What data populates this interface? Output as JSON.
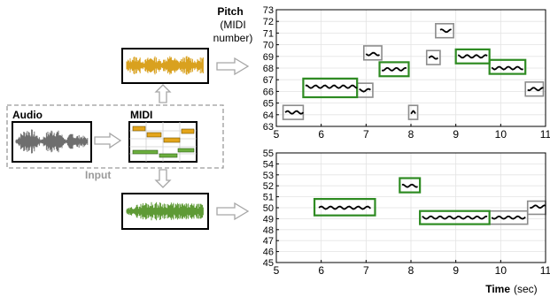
{
  "labels": {
    "audio": "Audio",
    "midi": "MIDI",
    "input": "Input",
    "pitch_title": "Pitch",
    "pitch_line2": "(MIDI",
    "pitch_line3": "number)",
    "time_title": "Time",
    "time_unit": "(sec)"
  },
  "colors": {
    "orange_wave": "#d9a11f",
    "green_wave": "#5e9a35",
    "gray_wave": "#6e6e6e",
    "green_box": "#2e8b22",
    "gray_box": "#8c8c8c",
    "dashed_border": "#9a9a9a",
    "arrow": "#a6a6a6"
  },
  "chart_data": [
    {
      "type": "line",
      "title": "",
      "xlabel": "",
      "ylabel": "Pitch (MIDI number)",
      "xlim": [
        5,
        11
      ],
      "ylim": [
        63,
        73
      ],
      "xticks": [
        "5",
        "6",
        "7",
        "8",
        "9",
        "10",
        "11"
      ],
      "yticks": [
        "63",
        "64",
        "65",
        "66",
        "67",
        "68",
        "69",
        "70",
        "71",
        "72",
        "73"
      ],
      "grid": true,
      "gray_notes": [
        {
          "x0": 5.15,
          "x1": 5.6,
          "y0": 63.6,
          "y1": 64.8
        },
        {
          "x0": 6.8,
          "x1": 7.15,
          "y0": 65.5,
          "y1": 66.7
        },
        {
          "x0": 6.95,
          "x1": 7.35,
          "y0": 68.7,
          "y1": 69.9
        },
        {
          "x0": 7.95,
          "x1": 8.15,
          "y0": 63.6,
          "y1": 64.8
        },
        {
          "x0": 8.35,
          "x1": 8.65,
          "y0": 68.3,
          "y1": 69.5
        },
        {
          "x0": 8.55,
          "x1": 8.95,
          "y0": 70.6,
          "y1": 71.8
        },
        {
          "x0": 10.55,
          "x1": 10.95,
          "y0": 65.6,
          "y1": 66.8
        }
      ],
      "green_notes": [
        {
          "x0": 5.6,
          "x1": 6.8,
          "y0": 65.5,
          "y1": 67.1
        },
        {
          "x0": 7.3,
          "x1": 7.95,
          "y0": 67.3,
          "y1": 68.5
        },
        {
          "x0": 9.0,
          "x1": 9.75,
          "y0": 68.4,
          "y1": 69.6
        },
        {
          "x0": 9.75,
          "x1": 10.55,
          "y0": 67.5,
          "y1": 68.7
        }
      ],
      "curve": [
        {
          "x0": 5.2,
          "x1": 5.6,
          "y": 64.2
        },
        {
          "x0": 5.65,
          "x1": 6.8,
          "y": 66.4
        },
        {
          "x0": 6.85,
          "x1": 7.1,
          "y": 66.1
        },
        {
          "x0": 7.0,
          "x1": 7.3,
          "y": 69.2
        },
        {
          "x0": 7.35,
          "x1": 7.9,
          "y": 67.9
        },
        {
          "x0": 8.0,
          "x1": 8.1,
          "y": 64.2
        },
        {
          "x0": 8.4,
          "x1": 8.6,
          "y": 68.9
        },
        {
          "x0": 8.65,
          "x1": 8.9,
          "y": 71.2
        },
        {
          "x0": 9.05,
          "x1": 9.7,
          "y": 69.0
        },
        {
          "x0": 9.8,
          "x1": 10.5,
          "y": 68.0
        },
        {
          "x0": 10.6,
          "x1": 10.95,
          "y": 66.2
        }
      ]
    },
    {
      "type": "line",
      "title": "",
      "xlabel": "Time (sec)",
      "ylabel": "",
      "xlim": [
        5,
        11
      ],
      "ylim": [
        45,
        55
      ],
      "xticks": [
        "5",
        "6",
        "7",
        "8",
        "9",
        "10",
        "11"
      ],
      "yticks": [
        "45",
        "46",
        "47",
        "48",
        "49",
        "50",
        "51",
        "52",
        "53",
        "54",
        "55"
      ],
      "grid": true,
      "gray_notes": [
        {
          "x0": 9.75,
          "x1": 10.6,
          "y0": 48.5,
          "y1": 49.7
        },
        {
          "x0": 10.6,
          "x1": 11.0,
          "y0": 49.4,
          "y1": 50.6
        }
      ],
      "green_notes": [
        {
          "x0": 5.85,
          "x1": 7.2,
          "y0": 49.3,
          "y1": 50.8
        },
        {
          "x0": 7.75,
          "x1": 8.2,
          "y0": 51.4,
          "y1": 52.7
        },
        {
          "x0": 8.2,
          "x1": 9.75,
          "y0": 48.5,
          "y1": 49.7
        }
      ],
      "curve": [
        {
          "x0": 5.95,
          "x1": 7.1,
          "y": 50.0
        },
        {
          "x0": 7.8,
          "x1": 8.15,
          "y": 52.0
        },
        {
          "x0": 8.25,
          "x1": 9.7,
          "y": 49.1
        },
        {
          "x0": 9.8,
          "x1": 10.55,
          "y": 49.1
        },
        {
          "x0": 10.65,
          "x1": 11.0,
          "y": 50.1
        }
      ]
    }
  ]
}
